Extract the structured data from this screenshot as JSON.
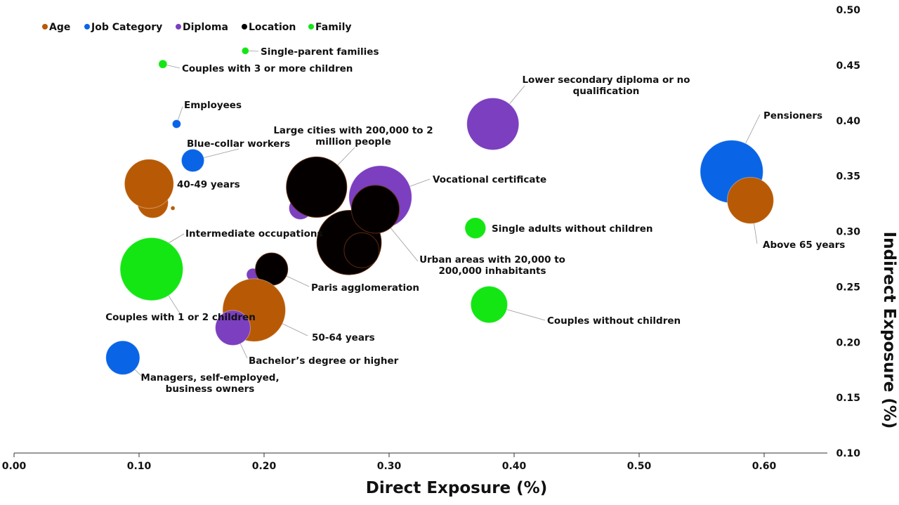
{
  "chart_data": {
    "type": "scatter",
    "subtype": "bubble",
    "xlabel": "Direct Exposure (%)",
    "ylabel": "Indirect Exposure (%)",
    "xlim": [
      0,
      0.65
    ],
    "ylim": [
      0.1,
      0.5
    ],
    "xticks": [
      "0.00",
      "0.10",
      "0.20",
      "0.30",
      "0.40",
      "0.50",
      "0.60"
    ],
    "yticks": [
      "0.10",
      "0.15",
      "0.20",
      "0.25",
      "0.30",
      "0.35",
      "0.40",
      "0.45",
      "0.50"
    ],
    "grid": false,
    "legend_position": "top-left",
    "groups": [
      {
        "name": "Age",
        "color": "#b85a05"
      },
      {
        "name": "Job Category",
        "color": "#0a64e6"
      },
      {
        "name": "Diploma",
        "color": "#7b3fc0"
      },
      {
        "name": "Location",
        "color": "#050000"
      },
      {
        "name": "Family",
        "color": "#14e614"
      }
    ],
    "points": [
      {
        "label": "",
        "group": "Job Category",
        "x": 0.103,
        "y": 0.276,
        "size": 6
      },
      {
        "label": "Intermediate occupations",
        "group": "Job Category",
        "x": 0.103,
        "y": 0.276,
        "size": 0.1
      },
      {
        "label": "Couples with 1 or 2 children",
        "group": "Family",
        "x": 0.11,
        "y": 0.266,
        "size": 20
      },
      {
        "label": "Single-parent families",
        "group": "Family",
        "x": 0.185,
        "y": 0.463,
        "size": 0.25
      },
      {
        "label": "Couples with 3 or more children",
        "group": "Family",
        "x": 0.119,
        "y": 0.451,
        "size": 0.36
      },
      {
        "label": "Employees",
        "group": "Job Category",
        "x": 0.13,
        "y": 0.397,
        "size": 0.36
      },
      {
        "label": "Blue-collar workers",
        "group": "Job Category",
        "x": 0.143,
        "y": 0.364,
        "size": 2.6
      },
      {
        "label": "",
        "group": "Age",
        "x": 0.111,
        "y": 0.326,
        "size": 4.8
      },
      {
        "label": "40-49 years",
        "group": "Age",
        "x": 0.108,
        "y": 0.343,
        "size": 12.2
      },
      {
        "label": "",
        "group": "Age",
        "x": 0.127,
        "y": 0.321,
        "size": 0.09
      },
      {
        "label": "Lower secondary diploma or no qualification",
        "group": "Diploma",
        "x": 0.383,
        "y": 0.397,
        "size": 13.7
      },
      {
        "label": "Pensioners",
        "group": "Job Category",
        "x": 0.574,
        "y": 0.354,
        "size": 20
      },
      {
        "label": "Above 65 years",
        "group": "Age",
        "x": 0.589,
        "y": 0.328,
        "size": 10.9
      },
      {
        "label": "",
        "group": "Diploma",
        "x": 0.229,
        "y": 0.321,
        "size": 2.6
      },
      {
        "label": "Large cities with 200,000 to 2 million people",
        "group": "Location",
        "x": 0.242,
        "y": 0.34,
        "size": 18.5
      },
      {
        "label": "Vocational certificate",
        "group": "Diploma",
        "x": 0.293,
        "y": 0.331,
        "size": 20
      },
      {
        "label": "",
        "group": "Location",
        "x": 0.268,
        "y": 0.29,
        "size": 21
      },
      {
        "label": "",
        "group": "Location",
        "x": 0.278,
        "y": 0.283,
        "size": 6.2
      },
      {
        "label": "Urban areas with 20,000 to 200,000 inhabitants",
        "group": "Location",
        "x": 0.289,
        "y": 0.32,
        "size": 11.6
      },
      {
        "label": "Single adults without children",
        "group": "Family",
        "x": 0.369,
        "y": 0.303,
        "size": 2.2
      },
      {
        "label": "",
        "group": "Diploma",
        "x": 0.191,
        "y": 0.261,
        "size": 0.8
      },
      {
        "label": "Paris agglomeration",
        "group": "Location",
        "x": 0.206,
        "y": 0.266,
        "size": 5.3
      },
      {
        "label": "50-64 years",
        "group": "Age",
        "x": 0.192,
        "y": 0.229,
        "size": 20
      },
      {
        "label": "Bachelor’s degree or higher",
        "group": "Diploma",
        "x": 0.175,
        "y": 0.213,
        "size": 6.2
      },
      {
        "label": "Couples without children",
        "group": "Family",
        "x": 0.38,
        "y": 0.234,
        "size": 6.8
      },
      {
        "label": "Managers, self-employed, business owners",
        "group": "Job Category",
        "x": 0.087,
        "y": 0.186,
        "size": 5.8
      }
    ]
  }
}
